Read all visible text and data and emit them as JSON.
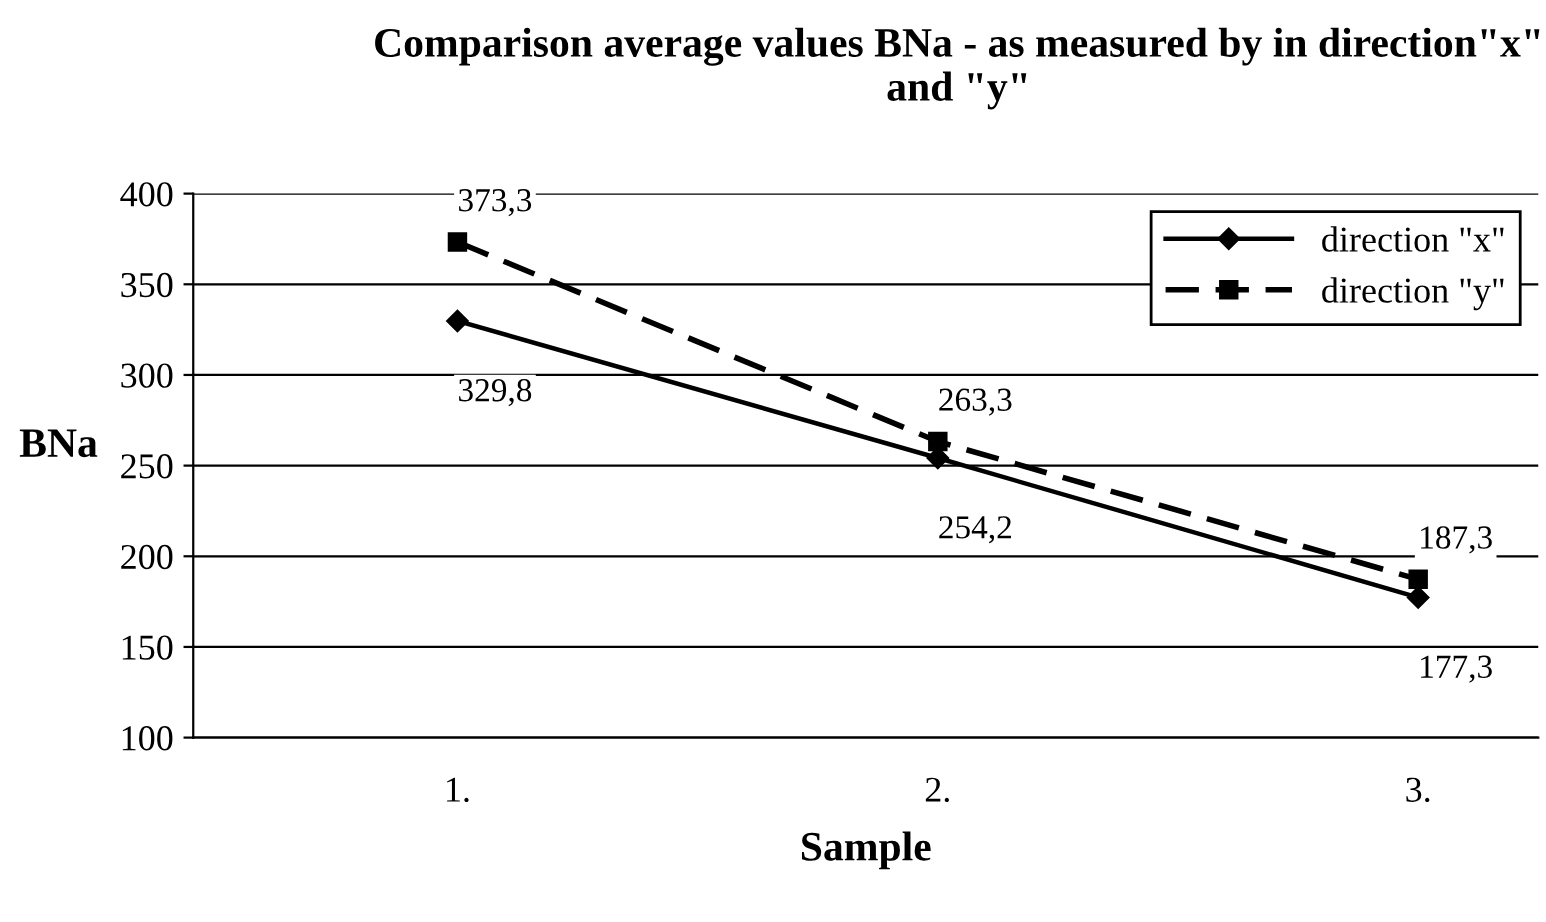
{
  "chart_data": {
    "type": "line",
    "title": "Comparison average values BNa - as measured by in direction\"x\" and \"y\"",
    "xlabel": "Sample",
    "ylabel": "BNa",
    "categories": [
      "1.",
      "2.",
      "3."
    ],
    "series": [
      {
        "name": "direction \"x\"",
        "color": "#000000",
        "values": [
          329.8,
          254.2,
          177.3
        ],
        "value_labels": [
          "329,8",
          "254,2",
          "177,3"
        ],
        "marker": "diamond",
        "line_style": "solid"
      },
      {
        "name": "direction \"y\"",
        "color": "#000000",
        "values": [
          373.3,
          263.3,
          187.3
        ],
        "value_labels": [
          "373,3",
          "263,3",
          "187,3"
        ],
        "marker": "square",
        "line_style": "dashed"
      }
    ],
    "ylim": [
      100,
      400
    ],
    "yticks": [
      100,
      150,
      200,
      250,
      300,
      350,
      400
    ],
    "grid": "y",
    "legend": "top right"
  }
}
